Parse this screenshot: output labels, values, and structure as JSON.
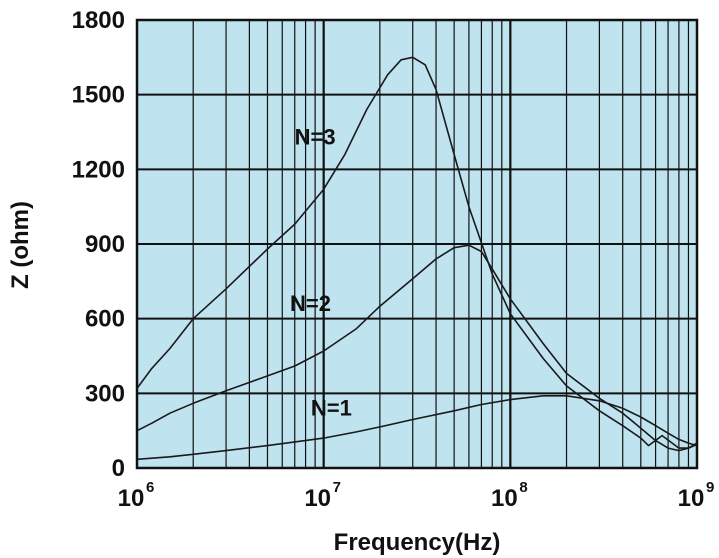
{
  "chart_data": {
    "type": "line",
    "xlabel": "Frequency(Hz)",
    "ylabel": "Z (ohm)",
    "x_scale": "log",
    "xlim": [
      1000000,
      1000000000
    ],
    "ylim": [
      0,
      1800
    ],
    "grid": true,
    "background_color": "#bfe3ef",
    "line_color": "#1a1a1a",
    "x_ticks": [
      {
        "value": 1000000,
        "base": "10",
        "exp": "6"
      },
      {
        "value": 10000000,
        "base": "10",
        "exp": "7"
      },
      {
        "value": 100000000,
        "base": "10",
        "exp": "8"
      },
      {
        "value": 1000000000,
        "base": "10",
        "exp": "9"
      }
    ],
    "y_ticks": [
      0,
      300,
      600,
      900,
      1200,
      1500,
      1800
    ],
    "series": [
      {
        "name": "N=3",
        "label_at": [
          9000000,
          1300
        ],
        "points": [
          [
            1000000,
            320
          ],
          [
            1200000,
            400
          ],
          [
            1500000,
            480
          ],
          [
            2000000,
            600
          ],
          [
            3000000,
            720
          ],
          [
            5000000,
            880
          ],
          [
            7000000,
            980
          ],
          [
            10000000,
            1120
          ],
          [
            13000000,
            1260
          ],
          [
            17000000,
            1440
          ],
          [
            22000000,
            1580
          ],
          [
            26000000,
            1640
          ],
          [
            30000000,
            1650
          ],
          [
            35000000,
            1620
          ],
          [
            40000000,
            1520
          ],
          [
            50000000,
            1260
          ],
          [
            60000000,
            1050
          ],
          [
            80000000,
            780
          ],
          [
            100000000,
            620
          ],
          [
            150000000,
            440
          ],
          [
            200000000,
            330
          ],
          [
            300000000,
            230
          ],
          [
            400000000,
            170
          ],
          [
            500000000,
            120
          ],
          [
            550000000,
            90
          ],
          [
            650000000,
            130
          ],
          [
            800000000,
            80
          ],
          [
            900000000,
            80
          ],
          [
            1000000000,
            100
          ]
        ]
      },
      {
        "name": "N=2",
        "label_at": [
          8500000,
          630
        ],
        "points": [
          [
            1000000,
            150
          ],
          [
            1200000,
            180
          ],
          [
            1500000,
            220
          ],
          [
            2000000,
            260
          ],
          [
            3000000,
            310
          ],
          [
            5000000,
            370
          ],
          [
            7000000,
            410
          ],
          [
            10000000,
            470
          ],
          [
            15000000,
            560
          ],
          [
            20000000,
            650
          ],
          [
            30000000,
            760
          ],
          [
            40000000,
            840
          ],
          [
            50000000,
            885
          ],
          [
            60000000,
            895
          ],
          [
            70000000,
            870
          ],
          [
            80000000,
            800
          ],
          [
            100000000,
            680
          ],
          [
            150000000,
            500
          ],
          [
            200000000,
            380
          ],
          [
            300000000,
            280
          ],
          [
            400000000,
            220
          ],
          [
            500000000,
            160
          ],
          [
            600000000,
            110
          ],
          [
            700000000,
            80
          ],
          [
            800000000,
            70
          ],
          [
            900000000,
            80
          ],
          [
            1000000000,
            95
          ]
        ]
      },
      {
        "name": "N=1",
        "label_at": [
          11000000,
          210
        ],
        "points": [
          [
            1000000,
            35
          ],
          [
            1500000,
            45
          ],
          [
            2000000,
            55
          ],
          [
            3000000,
            70
          ],
          [
            5000000,
            90
          ],
          [
            7000000,
            105
          ],
          [
            10000000,
            120
          ],
          [
            15000000,
            145
          ],
          [
            20000000,
            165
          ],
          [
            30000000,
            195
          ],
          [
            50000000,
            230
          ],
          [
            70000000,
            255
          ],
          [
            100000000,
            275
          ],
          [
            150000000,
            290
          ],
          [
            200000000,
            290
          ],
          [
            300000000,
            270
          ],
          [
            400000000,
            240
          ],
          [
            500000000,
            205
          ],
          [
            600000000,
            170
          ],
          [
            700000000,
            140
          ],
          [
            800000000,
            115
          ],
          [
            900000000,
            100
          ],
          [
            1000000000,
            90
          ]
        ]
      }
    ]
  }
}
